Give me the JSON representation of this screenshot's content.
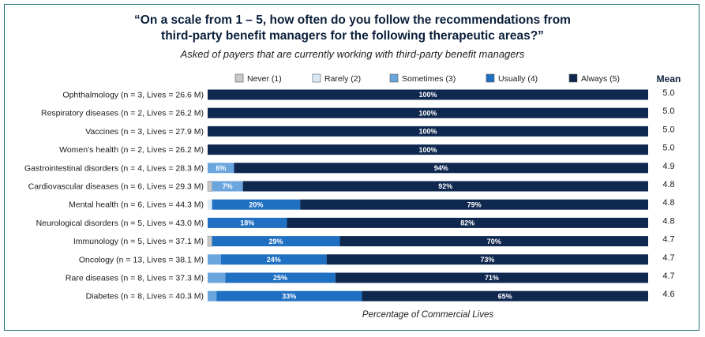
{
  "chart_data": {
    "type": "bar",
    "orientation": "horizontal-stacked",
    "title_line1": "“On a scale from 1 – 5, how often do you follow the recommendations from",
    "title_line2": "third-party benefit managers for the following therapeutic areas?”",
    "subtitle": "Asked of payers that are currently working with third-party benefit managers",
    "xlabel": "Percentage of Commercial Lives",
    "mean_header": "Mean",
    "xlim": [
      0,
      100
    ],
    "legend": [
      {
        "name": "Never (1)",
        "color": "#c9c9c9"
      },
      {
        "name": "Rarely (2)",
        "color": "#dbe9f6"
      },
      {
        "name": "Sometimes (3)",
        "color": "#6aa5de"
      },
      {
        "name": "Usually (4)",
        "color": "#1f6fc2"
      },
      {
        "name": "Always (5)",
        "color": "#0e2850"
      }
    ],
    "categories": [
      "Ophthalmology (n = 3, Lives = 26.6 M)",
      "Respiratory diseases (n = 2, Lives = 26.2 M)",
      "Vaccines (n = 3, Lives = 27.9 M)",
      "Women’s health (n = 2, Lives = 26.2 M)",
      "Gastrointestinal disorders (n = 4, Lives = 28.3 M)",
      "Cardiovascular diseases (n = 6, Lives = 29.3 M)",
      "Mental health (n = 6, Lives = 44.3 M)",
      "Neurological disorders (n = 5, Lives = 43.0 M)",
      "Immunology (n = 5, Lives = 37.1 M)",
      "Oncology (n = 13, Lives = 38.1 M)",
      "Rare diseases (n = 8, Lives = 37.3 M)",
      "Diabetes (n = 8, Lives = 40.3 M)"
    ],
    "series": [
      {
        "name": "Never (1)",
        "values": [
          0,
          0,
          0,
          0,
          0,
          1,
          0,
          0,
          1,
          0,
          0,
          0
        ]
      },
      {
        "name": "Rarely (2)",
        "values": [
          0,
          0,
          0,
          0,
          0,
          0,
          1,
          0,
          0,
          0,
          0,
          0
        ]
      },
      {
        "name": "Sometimes (3)",
        "values": [
          0,
          0,
          0,
          0,
          6,
          7,
          0,
          0,
          0,
          3,
          4,
          2
        ]
      },
      {
        "name": "Usually (4)",
        "values": [
          0,
          0,
          0,
          0,
          0,
          0,
          20,
          18,
          29,
          24,
          25,
          33
        ]
      },
      {
        "name": "Always (5)",
        "values": [
          100,
          100,
          100,
          100,
          94,
          92,
          79,
          82,
          70,
          73,
          71,
          65
        ]
      }
    ],
    "value_labels": [
      {
        "row": 0,
        "series": 4,
        "text": "100%"
      },
      {
        "row": 1,
        "series": 4,
        "text": "100%"
      },
      {
        "row": 2,
        "series": 4,
        "text": "100%"
      },
      {
        "row": 3,
        "series": 4,
        "text": "100%"
      },
      {
        "row": 4,
        "series": 2,
        "text": "6%"
      },
      {
        "row": 4,
        "series": 4,
        "text": "94%"
      },
      {
        "row": 5,
        "series": 2,
        "text": "7%"
      },
      {
        "row": 5,
        "series": 4,
        "text": "92%"
      },
      {
        "row": 6,
        "series": 3,
        "text": "20%"
      },
      {
        "row": 6,
        "series": 4,
        "text": "79%"
      },
      {
        "row": 7,
        "series": 3,
        "text": "18%"
      },
      {
        "row": 7,
        "series": 4,
        "text": "82%"
      },
      {
        "row": 8,
        "series": 3,
        "text": "29%"
      },
      {
        "row": 8,
        "series": 4,
        "text": "70%"
      },
      {
        "row": 9,
        "series": 3,
        "text": "24%"
      },
      {
        "row": 9,
        "series": 4,
        "text": "73%"
      },
      {
        "row": 10,
        "series": 3,
        "text": "25%"
      },
      {
        "row": 10,
        "series": 4,
        "text": "71%"
      },
      {
        "row": 11,
        "series": 3,
        "text": "33%"
      },
      {
        "row": 11,
        "series": 4,
        "text": "65%"
      }
    ],
    "means": [
      "5.0",
      "5.0",
      "5.0",
      "5.0",
      "4.9",
      "4.8",
      "4.8",
      "4.8",
      "4.7",
      "4.7",
      "4.7",
      "4.6"
    ]
  }
}
